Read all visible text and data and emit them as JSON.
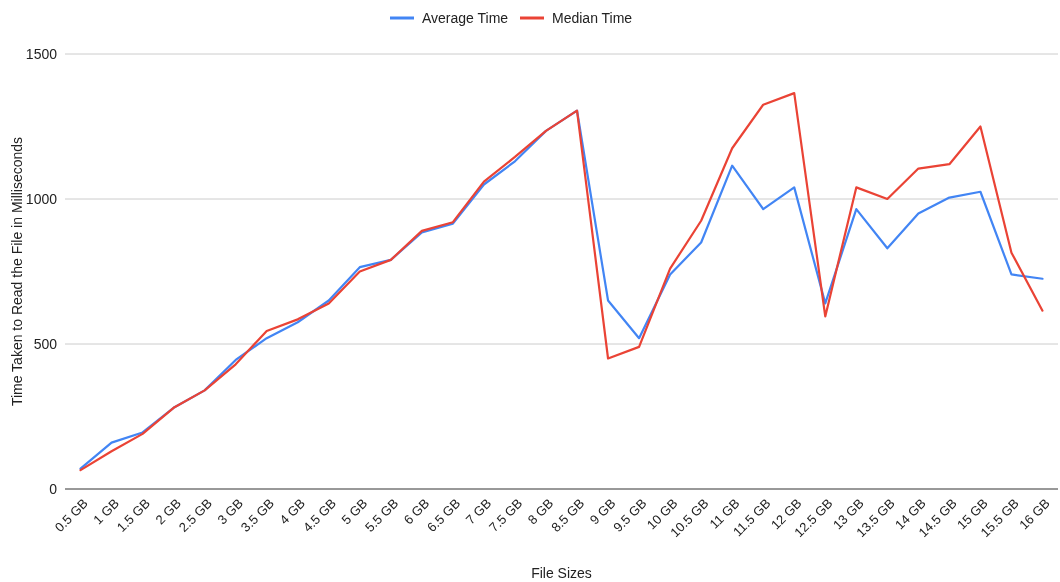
{
  "chart_data": {
    "type": "line",
    "xlabel": "File Sizes",
    "ylabel": "Time Taken to Read the File in Milliseconds",
    "categories": [
      "0.5 GB",
      "1 GB",
      "1.5 GB",
      "2 GB",
      "2.5 GB",
      "3 GB",
      "3.5 GB",
      "4 GB",
      "4.5 GB",
      "5 GB",
      "5.5 GB",
      "6 GB",
      "6.5 GB",
      "7 GB",
      "7.5 GB",
      "8 GB",
      "8.5 GB",
      "9 GB",
      "9.5 GB",
      "10 GB",
      "10.5 GB",
      "11 GB",
      "11.5 GB",
      "12 GB",
      "12.5 GB",
      "13 GB",
      "13.5 GB",
      "14 GB",
      "14.5 GB",
      "15 GB",
      "15.5 GB",
      "16 GB"
    ],
    "series": [
      {
        "name": "Average Time",
        "color": "#4285f4",
        "values": [
          70,
          160,
          195,
          280,
          340,
          445,
          520,
          575,
          650,
          765,
          790,
          885,
          915,
          1050,
          1130,
          1235,
          1305,
          650,
          520,
          740,
          850,
          1115,
          965,
          1040,
          640,
          965,
          830,
          950,
          1005,
          1025,
          740,
          725
        ]
      },
      {
        "name": "Median Time",
        "color": "#ea4335",
        "values": [
          65,
          130,
          190,
          280,
          340,
          430,
          545,
          585,
          640,
          750,
          790,
          890,
          920,
          1060,
          1145,
          1235,
          1305,
          450,
          490,
          760,
          925,
          1175,
          1325,
          1365,
          595,
          1040,
          1000,
          1105,
          1120,
          1250,
          815,
          615
        ]
      }
    ],
    "ylim": [
      0,
      1500
    ],
    "yticks": [
      0,
      500,
      1000,
      1500
    ],
    "grid": "y",
    "legend": "top",
    "marker": "none",
    "line_style": "solid"
  }
}
